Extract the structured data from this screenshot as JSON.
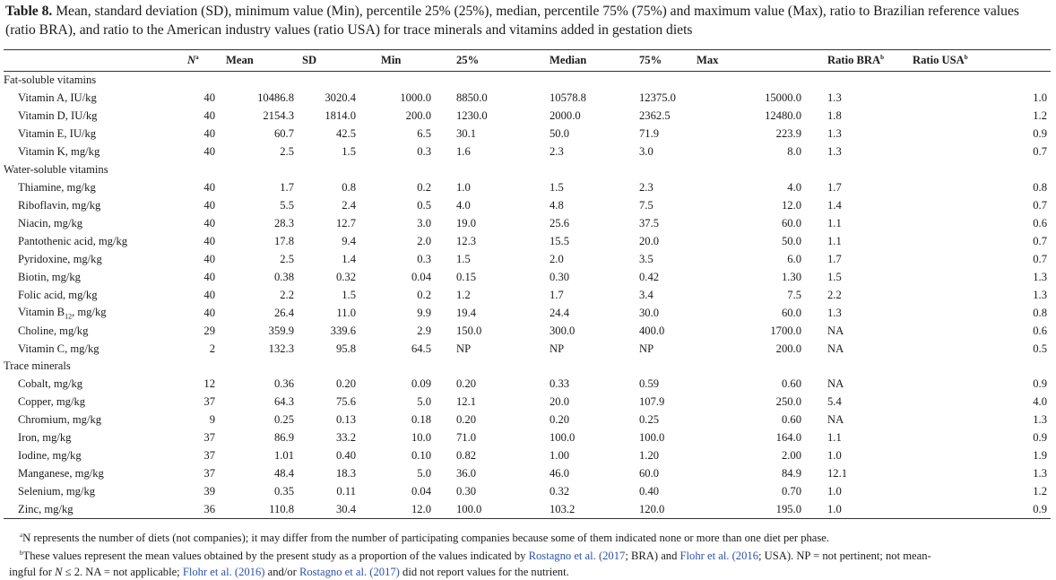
{
  "caption": {
    "lead": "Table 8.",
    "text": " Mean, standard deviation (SD), minimum value (Min), percentile 25% (25%), median, percentile 75% (75%) and maximum value (Max), ratio to Brazilian reference values (ratio BRA), and ratio to the American industry values (ratio USA) for trace minerals and vitamins added in gestation diets"
  },
  "headers": {
    "n": "N",
    "n_sup": "a",
    "mean": "Mean",
    "sd": "SD",
    "min": "Min",
    "p25": "25%",
    "median": "Median",
    "p75": "75%",
    "max": "Max",
    "bra": "Ratio BRA",
    "bra_sup": "b",
    "usa": "Ratio USA",
    "usa_sup": "b"
  },
  "sections": [
    {
      "title": "Fat-soluble vitamins",
      "rows": [
        {
          "name": "Vitamin A, IU/kg",
          "n": "40",
          "mean": "10486.8",
          "sd": "3020.4",
          "min": "1000.0",
          "p25": "8850.0",
          "median": "10578.8",
          "p75": "12375.0",
          "max": "15000.0",
          "bra": "1.3",
          "usa": "1.0"
        },
        {
          "name": "Vitamin D, IU/kg",
          "n": "40",
          "mean": "2154.3",
          "sd": "1814.0",
          "min": "200.0",
          "p25": "1230.0",
          "median": "2000.0",
          "p75": "2362.5",
          "max": "12480.0",
          "bra": "1.8",
          "usa": "1.2"
        },
        {
          "name": "Vitamin E, IU/kg",
          "n": "40",
          "mean": "60.7",
          "sd": "42.5",
          "min": "6.5",
          "p25": "30.1",
          "median": "50.0",
          "p75": "71.9",
          "max": "223.9",
          "bra": "1.3",
          "usa": "0.9"
        },
        {
          "name": "Vitamin K, mg/kg",
          "n": "40",
          "mean": "2.5",
          "sd": "1.5",
          "min": "0.3",
          "p25": "1.6",
          "median": "2.3",
          "p75": "3.0",
          "max": "8.0",
          "bra": "1.3",
          "usa": "0.7"
        }
      ]
    },
    {
      "title": "Water-soluble vitamins",
      "rows": [
        {
          "name": "Thiamine, mg/kg",
          "n": "40",
          "mean": "1.7",
          "sd": "0.8",
          "min": "0.2",
          "p25": "1.0",
          "median": "1.5",
          "p75": "2.3",
          "max": "4.0",
          "bra": "1.7",
          "usa": "0.8"
        },
        {
          "name": "Riboflavin, mg/kg",
          "n": "40",
          "mean": "5.5",
          "sd": "2.4",
          "min": "0.5",
          "p25": "4.0",
          "median": "4.8",
          "p75": "7.5",
          "max": "12.0",
          "bra": "1.4",
          "usa": "0.7"
        },
        {
          "name": "Niacin, mg/kg",
          "n": "40",
          "mean": "28.3",
          "sd": "12.7",
          "min": "3.0",
          "p25": "19.0",
          "median": "25.6",
          "p75": "37.5",
          "max": "60.0",
          "bra": "1.1",
          "usa": "0.6"
        },
        {
          "name": "Pantothenic acid, mg/kg",
          "n": "40",
          "mean": "17.8",
          "sd": "9.4",
          "min": "2.0",
          "p25": "12.3",
          "median": "15.5",
          "p75": "20.0",
          "max": "50.0",
          "bra": "1.1",
          "usa": "0.7"
        },
        {
          "name": "Pyridoxine, mg/kg",
          "n": "40",
          "mean": "2.5",
          "sd": "1.4",
          "min": "0.3",
          "p25": "1.5",
          "median": "2.0",
          "p75": "3.5",
          "max": "6.0",
          "bra": "1.7",
          "usa": "0.7"
        },
        {
          "name": "Biotin, mg/kg",
          "n": "40",
          "mean": "0.38",
          "sd": "0.32",
          "min": "0.04",
          "p25": "0.15",
          "median": "0.30",
          "p75": "0.42",
          "max": "1.30",
          "bra": "1.5",
          "usa": "1.3"
        },
        {
          "name": "Folic acid, mg/kg",
          "n": "40",
          "mean": "2.2",
          "sd": "1.5",
          "min": "0.2",
          "p25": "1.2",
          "median": "1.7",
          "p75": "3.4",
          "max": "7.5",
          "bra": "2.2",
          "usa": "1.3"
        },
        {
          "name": "Vitamin B",
          "name_sub": "12",
          "name_rest": ", mg/kg",
          "n": "40",
          "mean": "26.4",
          "sd": "11.0",
          "min": "9.9",
          "p25": "19.4",
          "median": "24.4",
          "p75": "30.0",
          "max": "60.0",
          "bra": "1.3",
          "usa": "0.8"
        },
        {
          "name": "Choline, mg/kg",
          "n": "29",
          "mean": "359.9",
          "sd": "339.6",
          "min": "2.9",
          "p25": "150.0",
          "median": "300.0",
          "p75": "400.0",
          "max": "1700.0",
          "bra": "NA",
          "usa": "0.6"
        },
        {
          "name": "Vitamin C, mg/kg",
          "n": "2",
          "mean": "132.3",
          "sd": "95.8",
          "min": "64.5",
          "p25": "NP",
          "median": "NP",
          "p75": "NP",
          "max": "200.0",
          "bra": "NA",
          "usa": "0.5"
        }
      ]
    },
    {
      "title": "Trace minerals",
      "rows": [
        {
          "name": "Cobalt, mg/kg",
          "n": "12",
          "mean": "0.36",
          "sd": "0.20",
          "min": "0.09",
          "p25": "0.20",
          "median": "0.33",
          "p75": "0.59",
          "max": "0.60",
          "bra": "NA",
          "usa": "0.9"
        },
        {
          "name": "Copper, mg/kg",
          "n": "37",
          "mean": "64.3",
          "sd": "75.6",
          "min": "5.0",
          "p25": "12.1",
          "median": "20.0",
          "p75": "107.9",
          "max": "250.0",
          "bra": "5.4",
          "usa": "4.0"
        },
        {
          "name": "Chromium, mg/kg",
          "n": "9",
          "mean": "0.25",
          "sd": "0.13",
          "min": "0.18",
          "p25": "0.20",
          "median": "0.20",
          "p75": "0.25",
          "max": "0.60",
          "bra": "NA",
          "usa": "1.3"
        },
        {
          "name": "Iron, mg/kg",
          "n": "37",
          "mean": "86.9",
          "sd": "33.2",
          "min": "10.0",
          "p25": "71.0",
          "median": "100.0",
          "p75": "100.0",
          "max": "164.0",
          "bra": "1.1",
          "usa": "0.9"
        },
        {
          "name": "Iodine, mg/kg",
          "n": "37",
          "mean": "1.01",
          "sd": "0.40",
          "min": "0.10",
          "p25": "0.82",
          "median": "1.00",
          "p75": "1.20",
          "max": "2.00",
          "bra": "1.0",
          "usa": "1.9"
        },
        {
          "name": "Manganese, mg/kg",
          "n": "37",
          "mean": "48.4",
          "sd": "18.3",
          "min": "5.0",
          "p25": "36.0",
          "median": "46.0",
          "p75": "60.0",
          "max": "84.9",
          "bra": "12.1",
          "usa": "1.3"
        },
        {
          "name": "Selenium, mg/kg",
          "n": "39",
          "mean": "0.35",
          "sd": "0.11",
          "min": "0.04",
          "p25": "0.30",
          "median": "0.32",
          "p75": "0.40",
          "max": "0.70",
          "bra": "1.0",
          "usa": "1.2"
        },
        {
          "name": "Zinc, mg/kg",
          "n": "36",
          "mean": "110.8",
          "sd": "30.4",
          "min": "12.0",
          "p25": "100.0",
          "median": "103.2",
          "p75": "120.0",
          "max": "195.0",
          "bra": "1.0",
          "usa": "0.9"
        }
      ]
    }
  ],
  "footnotes": {
    "a_mark": "a",
    "a_text": "N represents the number of diets (not companies); it may differ from the number of participating companies because some of them indicated none or more than one diet per phase.",
    "b_mark": "b",
    "b_text1": "These values represent the mean values obtained by the present study as a proportion of the values indicated by ",
    "b_link1": "Rostagno et al. (2017",
    "b_text2": "; BRA) and ",
    "b_link2": "Flohr et al. (2016",
    "b_text3": "; USA). NP = not pertinent; not mean-",
    "b_line2a": "ingful for ",
    "b_line2n": "N",
    "b_line2b": " ≤ 2. NA = not applicable; ",
    "b_link3": "Flohr et al. (2016)",
    "b_line2c": " and/or ",
    "b_link4": "Rostagno et al. (2017)",
    "b_line2d": " did not report values for the nutrient."
  }
}
